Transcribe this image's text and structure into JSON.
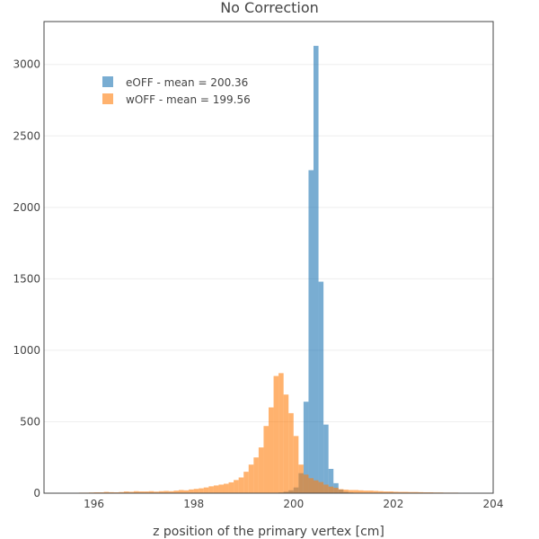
{
  "chart_data": {
    "type": "bar",
    "title": "No Correction",
    "xlabel": "z position of the primary vertex [cm]",
    "ylabel": "",
    "xlim": [
      195.0,
      204.0
    ],
    "ylim": [
      0,
      3300
    ],
    "x_ticks": [
      196,
      198,
      200,
      202,
      204
    ],
    "y_ticks": [
      0,
      500,
      1000,
      1500,
      2000,
      2500,
      3000
    ],
    "grid": "horizontal",
    "legend_position": "top-left",
    "bin_width": 0.1,
    "series": [
      {
        "name": "eOFF - mean = 200.36",
        "color": "#1f77b4",
        "bins": [
          [
            199.7,
            5
          ],
          [
            199.8,
            10
          ],
          [
            199.9,
            20
          ],
          [
            200.0,
            40
          ],
          [
            200.1,
            140
          ],
          [
            200.2,
            640
          ],
          [
            200.3,
            2260
          ],
          [
            200.4,
            3130
          ],
          [
            200.5,
            1480
          ],
          [
            200.6,
            480
          ],
          [
            200.7,
            170
          ],
          [
            200.8,
            70
          ],
          [
            200.9,
            25
          ],
          [
            201.0,
            10
          ],
          [
            201.1,
            5
          ]
        ]
      },
      {
        "name": "wOFF - mean = 199.56",
        "color": "#ff7f0e",
        "bins": [
          [
            195.0,
            3
          ],
          [
            195.1,
            3
          ],
          [
            195.2,
            2
          ],
          [
            195.3,
            3
          ],
          [
            195.4,
            2
          ],
          [
            195.5,
            3
          ],
          [
            195.6,
            3
          ],
          [
            195.7,
            4
          ],
          [
            195.8,
            4
          ],
          [
            195.9,
            5
          ],
          [
            196.0,
            6
          ],
          [
            196.1,
            6
          ],
          [
            196.2,
            9
          ],
          [
            196.3,
            7
          ],
          [
            196.4,
            6
          ],
          [
            196.5,
            8
          ],
          [
            196.6,
            12
          ],
          [
            196.7,
            10
          ],
          [
            196.8,
            14
          ],
          [
            196.9,
            12
          ],
          [
            197.0,
            12
          ],
          [
            197.1,
            14
          ],
          [
            197.2,
            11
          ],
          [
            197.3,
            14
          ],
          [
            197.4,
            16
          ],
          [
            197.5,
            14
          ],
          [
            197.6,
            18
          ],
          [
            197.7,
            22
          ],
          [
            197.8,
            20
          ],
          [
            197.9,
            26
          ],
          [
            198.0,
            30
          ],
          [
            198.1,
            34
          ],
          [
            198.2,
            40
          ],
          [
            198.3,
            48
          ],
          [
            198.4,
            54
          ],
          [
            198.5,
            60
          ],
          [
            198.6,
            66
          ],
          [
            198.7,
            76
          ],
          [
            198.8,
            92
          ],
          [
            198.9,
            110
          ],
          [
            199.0,
            150
          ],
          [
            199.1,
            200
          ],
          [
            199.2,
            250
          ],
          [
            199.3,
            320
          ],
          [
            199.4,
            470
          ],
          [
            199.5,
            600
          ],
          [
            199.6,
            820
          ],
          [
            199.7,
            840
          ],
          [
            199.8,
            690
          ],
          [
            199.9,
            560
          ],
          [
            200.0,
            400
          ],
          [
            200.1,
            200
          ],
          [
            200.2,
            130
          ],
          [
            200.3,
            105
          ],
          [
            200.4,
            90
          ],
          [
            200.5,
            78
          ],
          [
            200.6,
            60
          ],
          [
            200.7,
            46
          ],
          [
            200.8,
            38
          ],
          [
            200.9,
            28
          ],
          [
            201.0,
            25
          ],
          [
            201.1,
            22
          ],
          [
            201.2,
            22
          ],
          [
            201.3,
            20
          ],
          [
            201.4,
            18
          ],
          [
            201.5,
            18
          ],
          [
            201.6,
            16
          ],
          [
            201.7,
            14
          ],
          [
            201.8,
            12
          ],
          [
            201.9,
            12
          ],
          [
            202.0,
            10
          ],
          [
            202.1,
            9
          ],
          [
            202.2,
            9
          ],
          [
            202.3,
            8
          ],
          [
            202.4,
            8
          ],
          [
            202.5,
            7
          ],
          [
            202.6,
            6
          ],
          [
            202.7,
            6
          ],
          [
            202.8,
            5
          ],
          [
            202.9,
            5
          ],
          [
            203.0,
            4
          ],
          [
            203.1,
            4
          ],
          [
            203.2,
            4
          ],
          [
            203.3,
            3
          ],
          [
            203.4,
            3
          ],
          [
            203.5,
            3
          ],
          [
            203.6,
            3
          ],
          [
            203.7,
            2
          ],
          [
            203.8,
            2
          ],
          [
            203.9,
            2
          ]
        ]
      }
    ]
  }
}
